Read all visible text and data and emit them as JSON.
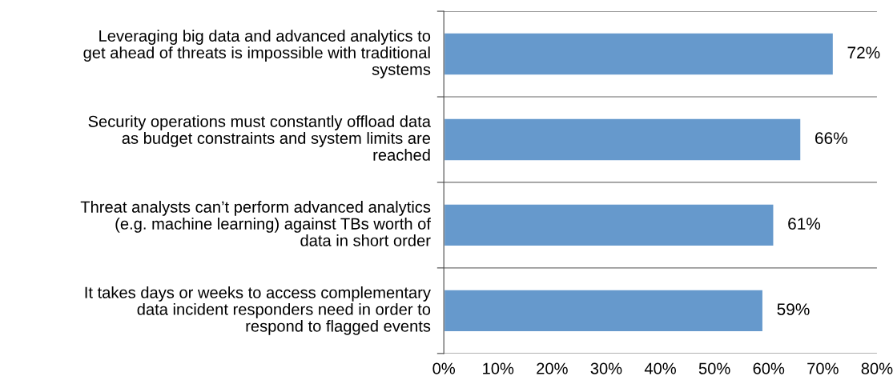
{
  "chart_data": {
    "type": "bar",
    "orientation": "horizontal",
    "categories": [
      "Leveraging big data and advanced analytics to\nget ahead of threats is impossible with traditional\nsystems",
      "Security operations must constantly offload data\nas budget constraints and system limits are\nreached",
      "Threat analysts can’t perform advanced analytics\n(e.g. machine learning) against TBs worth of\ndata in short order",
      "It takes days or weeks to access complementary\ndata incident responders need in order to\nrespond to flagged events"
    ],
    "values": [
      72,
      66,
      61,
      59
    ],
    "value_labels": [
      "72%",
      "66%",
      "61%",
      "59%"
    ],
    "color": "#6699cc",
    "xlim": [
      0,
      80
    ],
    "xticks": [
      {
        "value": 0,
        "label": "0%"
      },
      {
        "value": 10,
        "label": "10%"
      },
      {
        "value": 20,
        "label": "20%"
      },
      {
        "value": 30,
        "label": "30%"
      },
      {
        "value": 40,
        "label": "40%"
      },
      {
        "value": 50,
        "label": "50%"
      },
      {
        "value": 60,
        "label": "60%"
      },
      {
        "value": 70,
        "label": "70%"
      },
      {
        "value": 80,
        "label": "80%"
      }
    ],
    "grid": "y"
  }
}
